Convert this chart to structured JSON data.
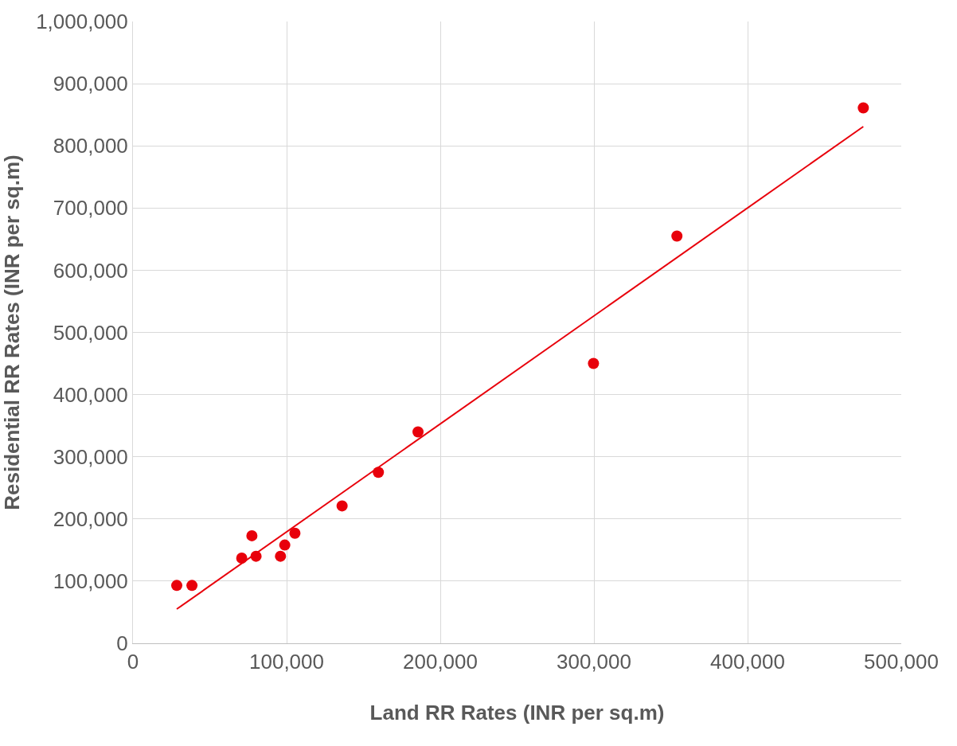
{
  "chart_data": {
    "type": "scatter",
    "xlabel": "Land RR Rates (INR per sq.m)",
    "ylabel": "Residential RR Rates (INR per sq.m)",
    "series": [
      {
        "color": "#e8000b",
        "marker": "circle",
        "x": [
          28500,
          38400,
          70800,
          77400,
          80100,
          96000,
          98800,
          105400,
          136100,
          159700,
          185500,
          299700,
          354000,
          475300
        ],
        "values": [
          93000,
          93000,
          137000,
          173000,
          140000,
          140000,
          158000,
          177000,
          221000,
          275000,
          340000,
          450000,
          655000,
          861000
        ]
      },
      {
        "type": "line",
        "color": "#e8000b",
        "marker": "none",
        "line_style": "solid",
        "x": [
          28500,
          475300
        ],
        "values": [
          55000,
          831000
        ]
      }
    ],
    "xlim": [
      0,
      500000
    ],
    "xticks": [
      0,
      {
        "value": 100000,
        "label": "100,000"
      },
      {
        "value": 200000,
        "label": "200,000"
      },
      {
        "value": 300000,
        "label": "300,000"
      },
      {
        "value": 400000,
        "label": "400,000"
      },
      {
        "value": 500000,
        "label": "500,000"
      }
    ],
    "ylim": [
      0,
      1000000
    ],
    "yticks": [
      0,
      {
        "value": 100000,
        "label": "100,000"
      },
      {
        "value": 200000,
        "label": "200,000"
      },
      {
        "value": 300000,
        "label": "300,000"
      },
      {
        "value": 400000,
        "label": "400,000"
      },
      {
        "value": 500000,
        "label": "500,000"
      },
      {
        "value": 600000,
        "label": "600,000"
      },
      {
        "value": 700000,
        "label": "700,000"
      },
      {
        "value": 800000,
        "label": "800,000"
      },
      {
        "value": 900000,
        "label": "900,000"
      },
      {
        "value": 1000000,
        "label": "1,000,000"
      }
    ],
    "grid": true
  }
}
